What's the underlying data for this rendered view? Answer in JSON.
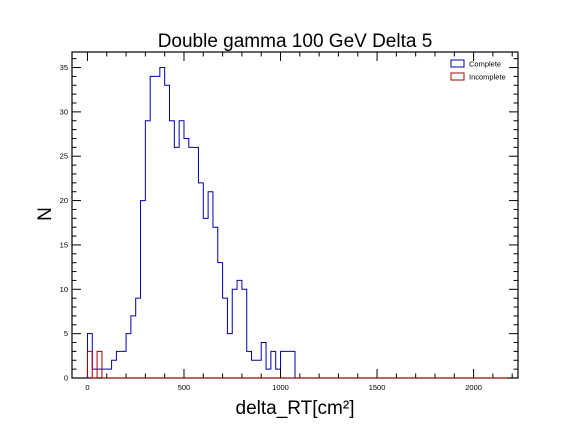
{
  "chart_data": {
    "type": "histogram",
    "title": "Double gamma 100 GeV Delta 5",
    "xlabel": "delta_RT[cm²]",
    "ylabel": "N",
    "xlim": [
      -80,
      2230
    ],
    "ylim": [
      0,
      36.75
    ],
    "xticks": [
      0,
      500,
      1000,
      1500,
      2000
    ],
    "yticks": [
      0,
      5,
      10,
      15,
      20,
      25,
      30,
      35
    ],
    "bin_start": 0,
    "bin_width": 25,
    "legend_position": "top-right",
    "series": [
      {
        "name": "Complete",
        "color": "#0000aa",
        "values": [
          5,
          1,
          1,
          1,
          1,
          2,
          3,
          3,
          5,
          7,
          9,
          20,
          29,
          34,
          34,
          35,
          33,
          29,
          26,
          29,
          27,
          26,
          26,
          22,
          18,
          21,
          17,
          13,
          9,
          5,
          10,
          11,
          10,
          3,
          2,
          2,
          4,
          1,
          3,
          1,
          3,
          3,
          3,
          0,
          0,
          0,
          0,
          0,
          0,
          0,
          0,
          0,
          0,
          0,
          0,
          0,
          0,
          0,
          0,
          0,
          0,
          0,
          0,
          0,
          0,
          0,
          0,
          0,
          0,
          0,
          0,
          0,
          0,
          0,
          0,
          0,
          0,
          0,
          0,
          0,
          0,
          0,
          0,
          0,
          0,
          0,
          0
        ]
      },
      {
        "name": "Incomplete",
        "color": "#aa0000",
        "values": [
          3,
          0,
          3,
          0,
          0,
          0,
          0,
          0,
          0,
          0,
          0,
          0,
          0,
          0,
          0,
          0,
          0,
          0,
          0,
          0,
          0,
          0,
          0,
          0,
          0,
          0,
          0,
          0,
          0,
          0,
          0,
          0,
          0,
          0,
          0,
          0,
          0,
          0,
          0,
          0,
          0,
          0,
          0,
          0,
          0,
          0,
          0,
          0,
          0,
          0,
          0,
          0,
          0,
          0,
          0,
          0,
          0,
          0,
          0,
          0,
          0,
          0,
          0,
          0,
          0,
          0,
          0,
          0,
          0,
          0,
          0,
          0,
          0,
          0,
          0,
          0,
          0,
          0,
          0,
          0,
          0,
          0,
          0,
          0,
          0,
          0,
          0
        ]
      }
    ]
  }
}
